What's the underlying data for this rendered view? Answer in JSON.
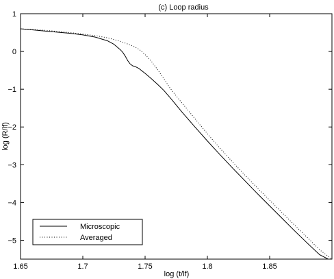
{
  "chart_data": {
    "type": "line",
    "title": "(c) Loop radius",
    "xlabel": "log (t/lf)",
    "ylabel": "log (R/lf)",
    "xlim": [
      1.65,
      1.9
    ],
    "ylim": [
      -5.5,
      1
    ],
    "xticks": [
      1.65,
      1.7,
      1.75,
      1.8,
      1.85
    ],
    "xtick_labels": [
      "1.65",
      "1.7",
      "1.75",
      "1.8",
      "1.85"
    ],
    "yticks": [
      1,
      0,
      -1,
      -2,
      -3,
      -4,
      -5
    ],
    "ytick_labels": [
      "1",
      "0",
      "−1",
      "−2",
      "−3",
      "−4",
      "−5"
    ],
    "grid": false,
    "legend_position": "bottom-left",
    "series": [
      {
        "name": "Microscopic",
        "line_style": "solid",
        "color": "#000000",
        "x": [
          1.65,
          1.66,
          1.67,
          1.68,
          1.69,
          1.7,
          1.71,
          1.72,
          1.725,
          1.73,
          1.732,
          1.734,
          1.736,
          1.738,
          1.74,
          1.742,
          1.745,
          1.75,
          1.755,
          1.76,
          1.765,
          1.77,
          1.775,
          1.78,
          1.79,
          1.8,
          1.81,
          1.82,
          1.83,
          1.84,
          1.85,
          1.86,
          1.87,
          1.88,
          1.89,
          1.897
        ],
        "y": [
          0.6,
          0.57,
          0.54,
          0.51,
          0.48,
          0.44,
          0.38,
          0.28,
          0.19,
          0.05,
          -0.02,
          -0.12,
          -0.24,
          -0.33,
          -0.38,
          -0.4,
          -0.45,
          -0.58,
          -0.72,
          -0.87,
          -1.03,
          -1.22,
          -1.42,
          -1.62,
          -2.0,
          -2.37,
          -2.73,
          -3.08,
          -3.42,
          -3.76,
          -4.09,
          -4.42,
          -4.75,
          -5.07,
          -5.38,
          -5.5
        ]
      },
      {
        "name": "Averaged",
        "line_style": "dotted",
        "color": "#000000",
        "x": [
          1.65,
          1.66,
          1.67,
          1.68,
          1.69,
          1.7,
          1.71,
          1.72,
          1.73,
          1.74,
          1.745,
          1.75,
          1.755,
          1.76,
          1.765,
          1.77,
          1.775,
          1.78,
          1.79,
          1.8,
          1.81,
          1.82,
          1.83,
          1.84,
          1.85,
          1.86,
          1.87,
          1.88,
          1.89,
          1.9
        ],
        "y": [
          0.6,
          0.58,
          0.56,
          0.53,
          0.5,
          0.46,
          0.42,
          0.36,
          0.27,
          0.15,
          0.06,
          -0.08,
          -0.26,
          -0.48,
          -0.72,
          -0.97,
          -1.18,
          -1.38,
          -1.78,
          -2.18,
          -2.56,
          -2.92,
          -3.27,
          -3.61,
          -3.94,
          -4.27,
          -4.6,
          -4.92,
          -5.25,
          -5.5
        ]
      }
    ]
  }
}
